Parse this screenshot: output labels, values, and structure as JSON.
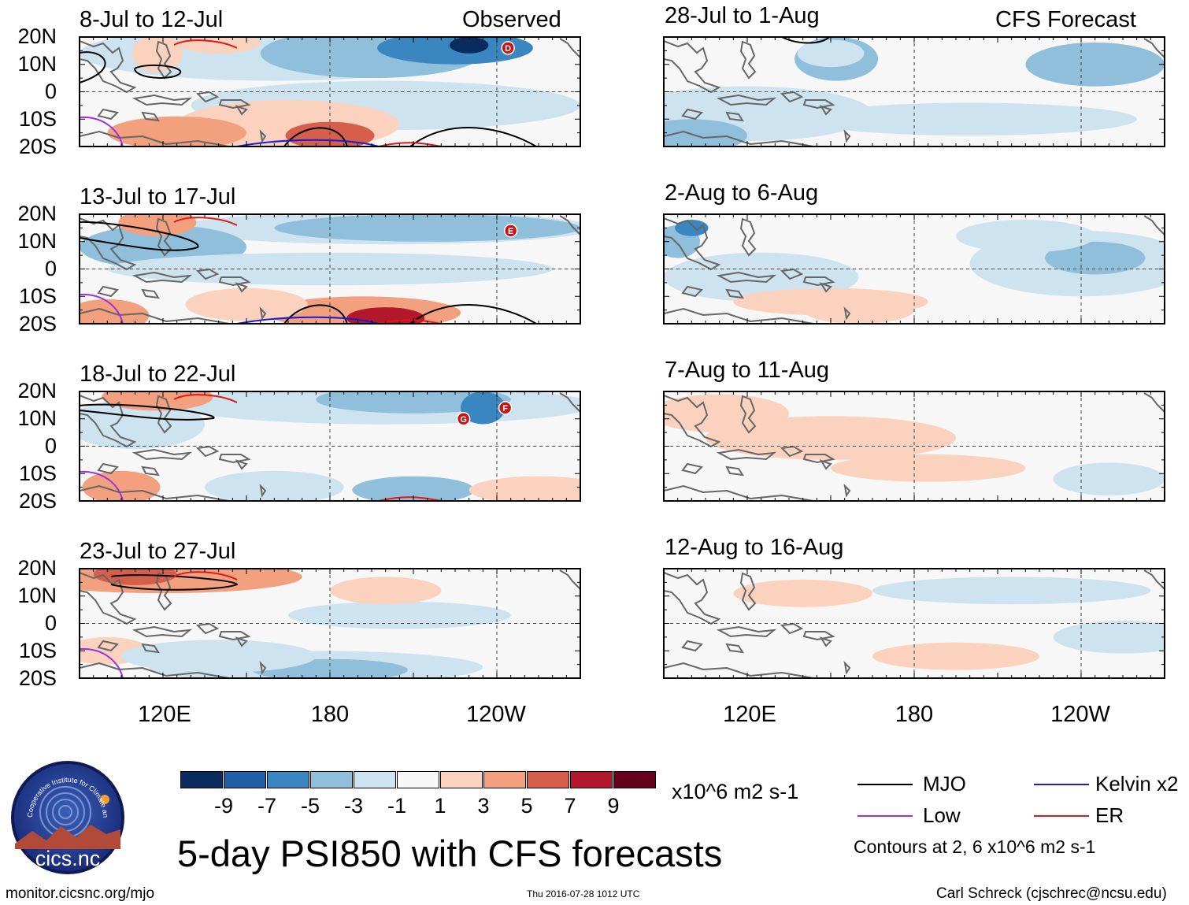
{
  "chart_data": {
    "type": "contour-map-panels",
    "title": "5-day PSI850 with CFS forecasts",
    "variable": "PSI850 anomaly",
    "units": "x10^6 m2 s-1",
    "column_headers": {
      "observed": "Observed",
      "forecast": "CFS Forecast"
    },
    "y_axis": {
      "ticks": [
        "20N",
        "10N",
        "0",
        "10S",
        "20S"
      ],
      "range_deg": [
        -20,
        20
      ]
    },
    "x_axis": {
      "ticks": [
        "120E",
        "180",
        "120W"
      ],
      "range_deg_east": [
        90,
        270
      ]
    },
    "observed_panels": [
      {
        "period": "8-Jul to 12-Jul",
        "storm_labels": [
          "D"
        ]
      },
      {
        "period": "13-Jul to 17-Jul",
        "storm_labels": [
          "E"
        ]
      },
      {
        "period": "18-Jul to 22-Jul",
        "storm_labels": [
          "G",
          "F"
        ]
      },
      {
        "period": "23-Jul to 27-Jul",
        "storm_labels": []
      }
    ],
    "forecast_panels": [
      {
        "period": "28-Jul to 1-Aug"
      },
      {
        "period": "2-Aug to 6-Aug"
      },
      {
        "period": "7-Aug to 11-Aug"
      },
      {
        "period": "12-Aug to 16-Aug"
      }
    ],
    "colorbar": {
      "labels": [
        "-9",
        "-7",
        "-5",
        "-3",
        "-1",
        "1",
        "3",
        "5",
        "7",
        "9"
      ],
      "colors": [
        "#0a2b5e",
        "#1f5fa8",
        "#3a86c0",
        "#8fbfdb",
        "#cde3f0",
        "#f7f7f7",
        "#fbd2bd",
        "#f2a07e",
        "#d65f4b",
        "#b2182b",
        "#67001f"
      ],
      "units_label": "x10^6 m2 s-1"
    },
    "legend": [
      {
        "label": "MJO",
        "color": "#000000"
      },
      {
        "label": "Kelvin x2",
        "color": "#1a1ad6"
      },
      {
        "label": "Low",
        "color": "#9b30e0"
      },
      {
        "label": "ER",
        "color": "#e01818"
      }
    ],
    "contour_note": "Contours at 2, 6 x10^6 m2 s-1"
  },
  "footer": {
    "logo_text": "cics.nc",
    "logo_ring_text": "Cooperative Institute for Climate and Satellites",
    "url": "monitor.cicsnc.org/mjo",
    "timestamp": "Thu 2016-07-28 1012 UTC",
    "author": "Carl Schreck (cjschrec@ncsu.edu)"
  }
}
